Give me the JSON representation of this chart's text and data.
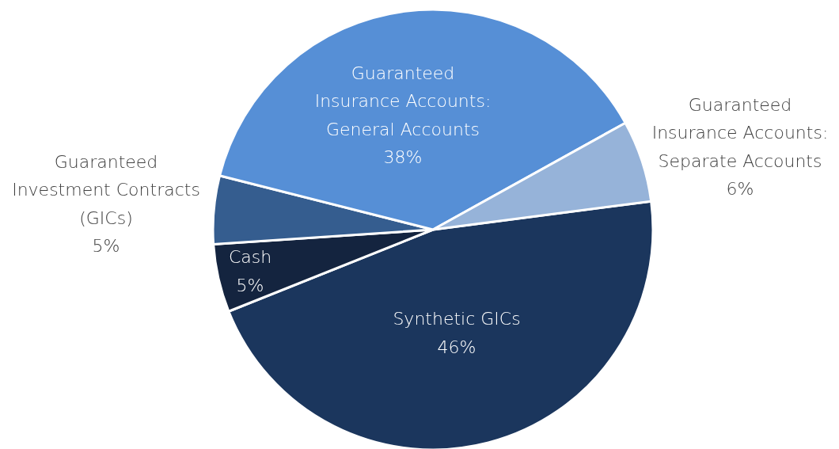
{
  "chart_data": {
    "type": "pie",
    "categories": [
      "Synthetic GICs",
      "Cash",
      "Guaranteed Investment Contracts (GICs)",
      "Guaranteed Insurance Accounts: General Accounts",
      "Guaranteed Insurance Accounts: Separate Accounts"
    ],
    "values": [
      46,
      5,
      5,
      38,
      6
    ],
    "value_labels": [
      "46%",
      "5%",
      "5%",
      "38%",
      "6%"
    ],
    "colors": [
      "#1b365d",
      "#14243f",
      "#355d8f",
      "#568fd6",
      "#96b3d9"
    ]
  }
}
